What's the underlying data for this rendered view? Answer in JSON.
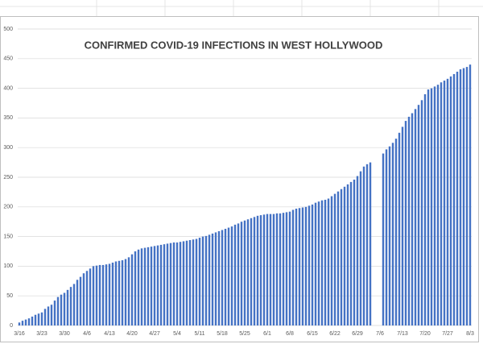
{
  "chart_data": {
    "type": "bar",
    "title": "CONFIRMED COVID-19 INFECTIONS IN WEST HOLLYWOOD",
    "categories": [
      "3/16",
      null,
      null,
      null,
      null,
      null,
      null,
      "3/23",
      null,
      null,
      null,
      null,
      null,
      null,
      "3/30",
      null,
      null,
      null,
      null,
      null,
      null,
      "4/6",
      null,
      null,
      null,
      null,
      null,
      null,
      "4/13",
      null,
      null,
      null,
      null,
      null,
      null,
      "4/20",
      null,
      null,
      null,
      null,
      null,
      null,
      "4/27",
      null,
      null,
      null,
      null,
      null,
      null,
      "5/4",
      null,
      null,
      null,
      null,
      null,
      null,
      "5/11",
      null,
      null,
      null,
      null,
      null,
      null,
      "5/18",
      null,
      null,
      null,
      null,
      null,
      null,
      "5/25",
      null,
      null,
      null,
      null,
      null,
      null,
      "6/1",
      null,
      null,
      null,
      null,
      null,
      null,
      "6/8",
      null,
      null,
      null,
      null,
      null,
      null,
      "6/15",
      null,
      null,
      null,
      null,
      null,
      null,
      "6/22",
      null,
      null,
      null,
      null,
      null,
      null,
      "6/29",
      null,
      null,
      null,
      null,
      null,
      null,
      "7/6",
      null,
      null,
      null,
      null,
      null,
      null,
      "7/13",
      null,
      null,
      null,
      null,
      null,
      null,
      "7/20",
      null,
      null,
      null,
      null,
      null,
      null,
      "7/27",
      null,
      null,
      null,
      null,
      null,
      null,
      "8/3"
    ],
    "values": [
      5,
      8,
      10,
      12,
      15,
      18,
      20,
      22,
      28,
      32,
      35,
      42,
      48,
      52,
      55,
      60,
      65,
      70,
      77,
      82,
      88,
      92,
      96,
      100,
      101,
      102,
      102,
      103,
      104,
      106,
      108,
      109,
      110,
      112,
      115,
      120,
      125,
      128,
      130,
      131,
      132,
      133,
      134,
      135,
      136,
      137,
      138,
      139,
      140,
      140,
      141,
      142,
      143,
      144,
      145,
      146,
      148,
      150,
      151,
      153,
      155,
      157,
      159,
      161,
      163,
      165,
      167,
      170,
      172,
      175,
      177,
      179,
      181,
      183,
      185,
      186,
      187,
      188,
      188,
      188,
      189,
      189,
      190,
      191,
      192,
      195,
      197,
      198,
      199,
      200,
      202,
      204,
      207,
      209,
      211,
      212,
      214,
      218,
      222,
      226,
      230,
      234,
      238,
      242,
      246,
      252,
      260,
      268,
      272,
      275,
      null,
      null,
      null,
      290,
      297,
      302,
      308,
      315,
      325,
      335,
      345,
      352,
      358,
      365,
      372,
      380,
      390,
      398,
      400,
      403,
      406,
      410,
      413,
      416,
      420,
      424,
      428,
      432,
      434,
      436,
      440
    ],
    "color": "#4472c4",
    "ylim": [
      0,
      500
    ],
    "yticks": [
      0,
      50,
      100,
      150,
      200,
      250,
      300,
      350,
      400,
      450,
      500
    ],
    "grid": true
  }
}
